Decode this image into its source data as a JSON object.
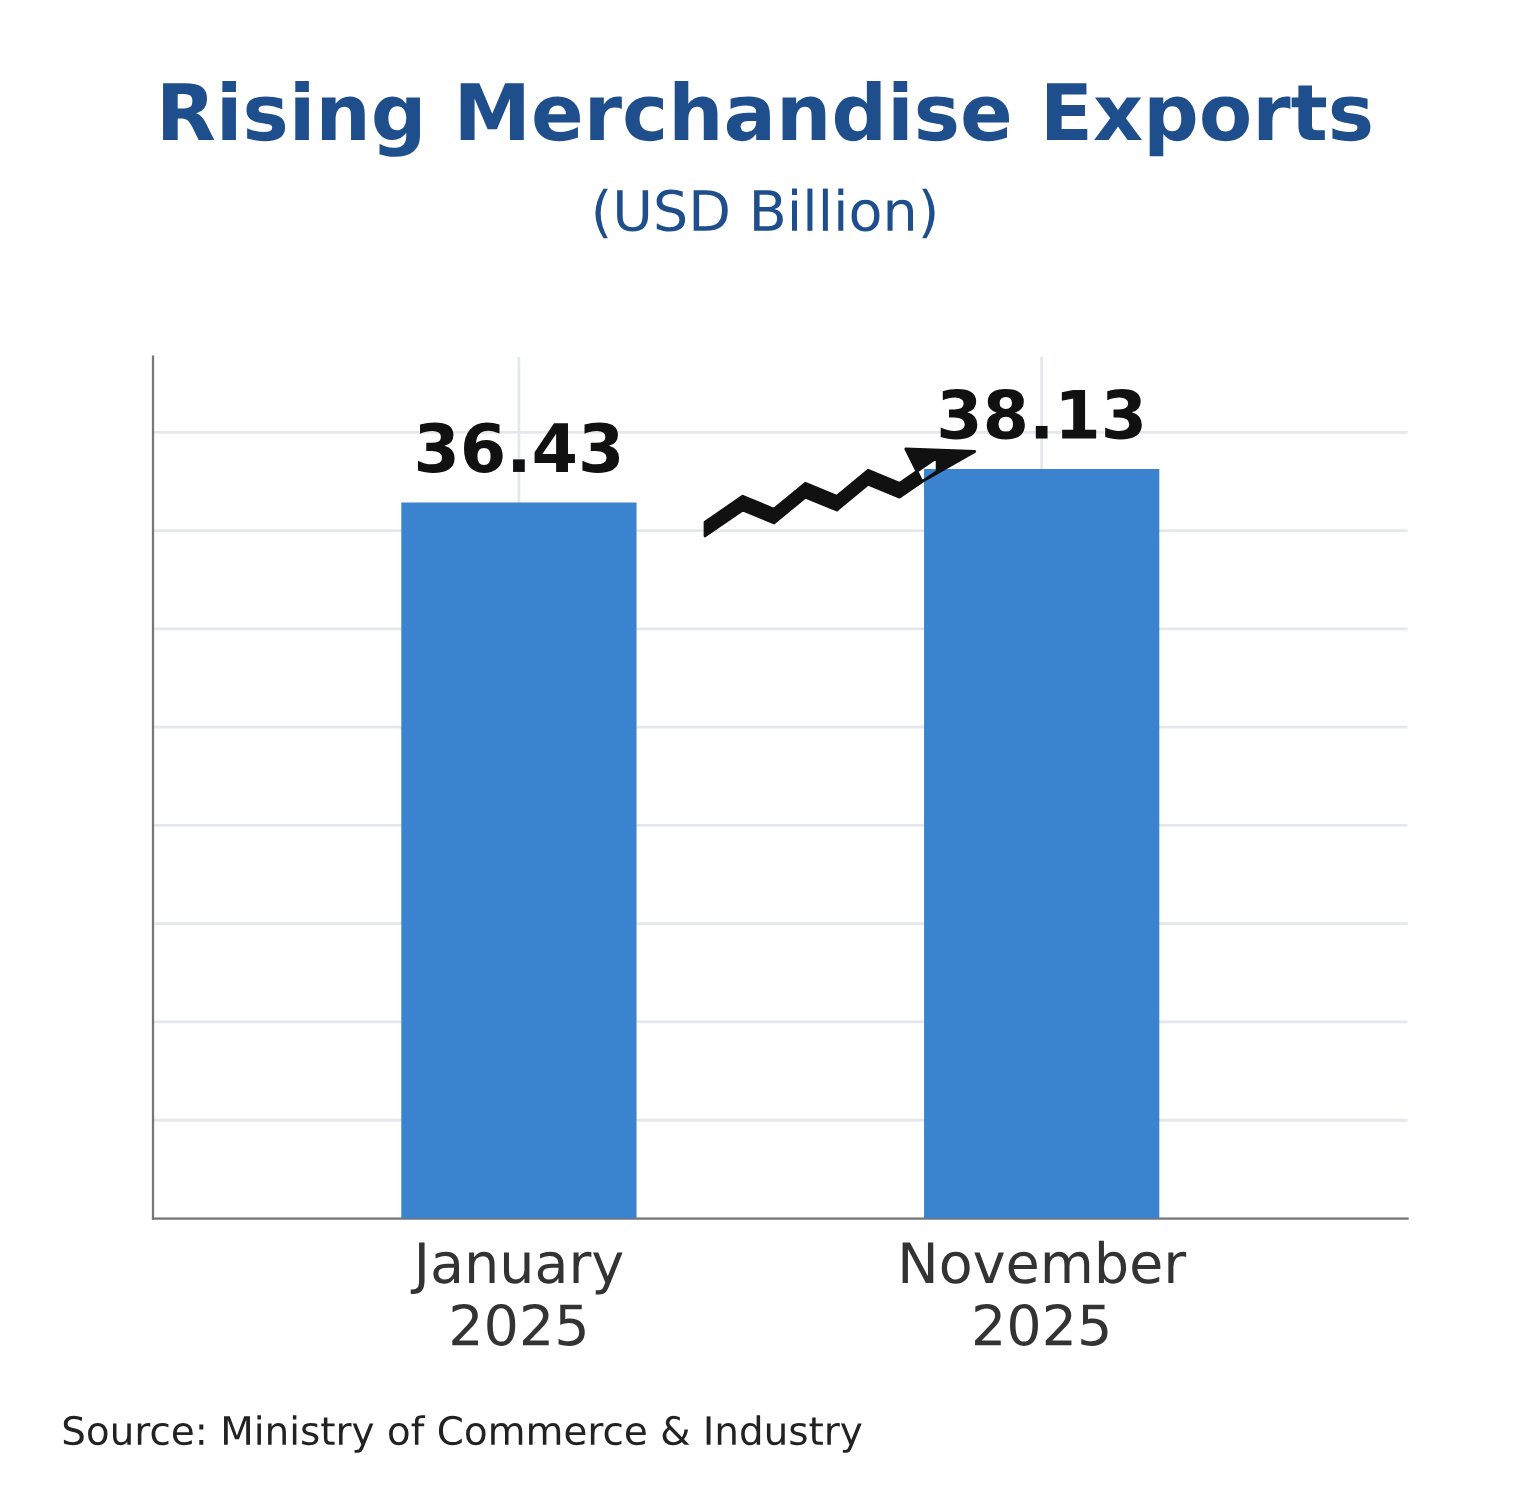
{
  "chart_data": {
    "type": "bar",
    "title": "Rising Merchandise Exports",
    "subtitle": "(USD Billion)",
    "categories": [
      "January\n2025",
      "November\n2025"
    ],
    "values": [
      36.43,
      38.13
    ],
    "color": "#3b82cf",
    "data_labels": true,
    "grid": true,
    "tick_labels": "x",
    "annotations": [
      "Source: Ministry of Commerce & Industry"
    ]
  }
}
